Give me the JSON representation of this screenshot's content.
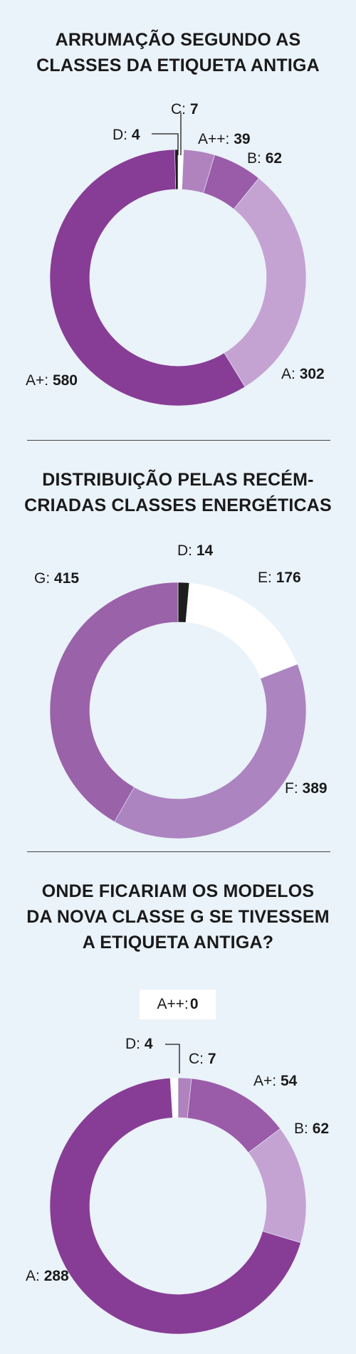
{
  "chart_data": [
    {
      "type": "pie",
      "title": "ARRUMAÇÃO SEGUNDO AS CLASSES DA ETIQUETA ANTIGA",
      "slices": [
        {
          "label": "C",
          "value": 7,
          "color": "#ffffff"
        },
        {
          "label": "A++",
          "value": 39,
          "color": "#b083bf"
        },
        {
          "label": "B",
          "value": 62,
          "color": "#9a5ca9"
        },
        {
          "label": "A",
          "value": 302,
          "color": "#c4a3d3"
        },
        {
          "label": "A+",
          "value": 580,
          "color": "#873d95"
        },
        {
          "label": "D",
          "value": 4,
          "color": "#1e1e1e"
        }
      ]
    },
    {
      "type": "pie",
      "title": "DISTRIBUIÇÃO PELAS RECÉM-CRIADAS CLASSES ENERGÉTICAS",
      "slices": [
        {
          "label": "D",
          "value": 14,
          "color": "#1e1e1e"
        },
        {
          "label": "E",
          "value": 176,
          "color": "#ffffff"
        },
        {
          "label": "F",
          "value": 389,
          "color": "#ac84c0"
        },
        {
          "label": "G",
          "value": 415,
          "color": "#9a62a8"
        }
      ]
    },
    {
      "type": "pie",
      "title": "ONDE FICARIAM OS MODELOS DA NOVA CLASSE G SE TIVESSEM A ETIQUETA ANTIGA?",
      "legend_note": {
        "label": "A++:",
        "value": "0"
      },
      "slices": [
        {
          "label": "C",
          "value": 7,
          "color": "#b083bf"
        },
        {
          "label": "A+",
          "value": 54,
          "color": "#9a5ca9"
        },
        {
          "label": "B",
          "value": 62,
          "color": "#c4a3d3"
        },
        {
          "label": "A",
          "value": 288,
          "color": "#873d95"
        },
        {
          "label": "D",
          "value": 4,
          "color": "#ffffff"
        }
      ]
    }
  ],
  "labels": [
    [
      {
        "label": "C:",
        "value": "7"
      },
      {
        "label": "A++:",
        "value": "39"
      },
      {
        "label": "B:",
        "value": "62"
      },
      {
        "label": "A:",
        "value": "302"
      },
      {
        "label": "A+:",
        "value": "580"
      },
      {
        "label": "D:",
        "value": "4"
      }
    ],
    [
      {
        "label": "D:",
        "value": "14"
      },
      {
        "label": "E:",
        "value": "176"
      },
      {
        "label": "F:",
        "value": "389"
      },
      {
        "label": "G:",
        "value": "415"
      }
    ],
    [
      {
        "label": "C:",
        "value": "7"
      },
      {
        "label": "A+:",
        "value": "54"
      },
      {
        "label": "B:",
        "value": "62"
      },
      {
        "label": "A:",
        "value": "288"
      },
      {
        "label": "D:",
        "value": "4"
      }
    ]
  ],
  "titles": {
    "t1": [
      "ARRUMAÇÃO SEGUNDO AS",
      "CLASSES DA ETIQUETA ANTIGA"
    ],
    "t2": [
      "DISTRIBUIÇÃO PELAS RECÉM-",
      "CRIADAS CLASSES ENERGÉTICAS"
    ],
    "t3": [
      "ONDE FICARIAM OS MODELOS",
      "DA NOVA CLASSE G SE TIVESSEM",
      "A ETIQUETA ANTIGA?"
    ]
  }
}
